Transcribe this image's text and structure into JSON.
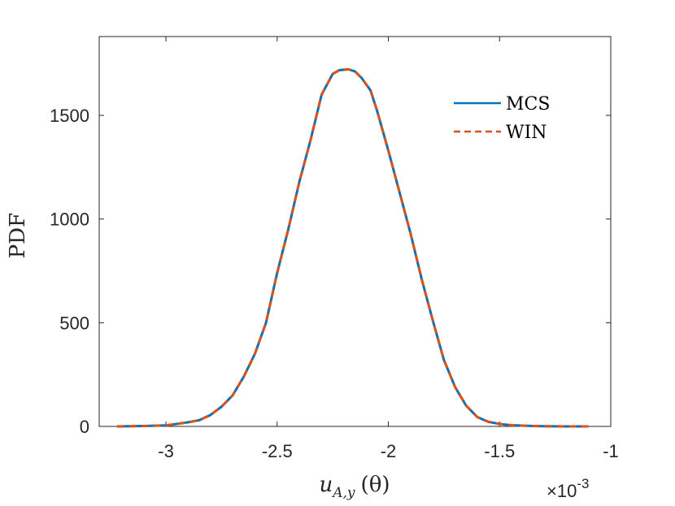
{
  "chart_data": {
    "type": "line",
    "title": "",
    "xlabel_var": "u",
    "xlabel_sub": "A,y",
    "xlabel_arg": "(θ)",
    "ylabel": "PDF",
    "x_multiplier_base": "×10",
    "x_multiplier_exp": "-3",
    "xlim": [
      -3.3,
      -1.0
    ],
    "ylim": [
      0,
      1880
    ],
    "xticks": [
      -3,
      -2.5,
      -2,
      -1.5,
      -1
    ],
    "xtick_labels": [
      "-3",
      "-2.5",
      "-2",
      "-1.5",
      "-1"
    ],
    "yticks": [
      0,
      500,
      1000,
      1500
    ],
    "ytick_labels": [
      "0",
      "500",
      "1000",
      "1500"
    ],
    "grid": false,
    "legend_position": "top-right",
    "series": [
      {
        "name": "MCS",
        "color": "#0072BD",
        "style": "solid",
        "x": [
          -3.22,
          -3.1,
          -3.0,
          -2.95,
          -2.9,
          -2.85,
          -2.8,
          -2.75,
          -2.7,
          -2.65,
          -2.6,
          -2.55,
          -2.5,
          -2.45,
          -2.4,
          -2.35,
          -2.3,
          -2.25,
          -2.22,
          -2.18,
          -2.15,
          -2.12,
          -2.08,
          -2.05,
          -2.0,
          -1.95,
          -1.9,
          -1.85,
          -1.8,
          -1.75,
          -1.7,
          -1.65,
          -1.6,
          -1.55,
          -1.5,
          -1.45,
          -1.4,
          -1.35,
          -1.3,
          -1.2,
          -1.1
        ],
        "y": [
          0,
          2,
          5,
          12,
          20,
          30,
          55,
          95,
          150,
          240,
          350,
          500,
          740,
          950,
          1180,
          1380,
          1600,
          1700,
          1718,
          1722,
          1712,
          1680,
          1620,
          1520,
          1330,
          1130,
          930,
          710,
          510,
          320,
          190,
          100,
          45,
          22,
          12,
          6,
          4,
          2,
          1,
          0,
          0
        ]
      },
      {
        "name": "WIN",
        "color": "#D95319",
        "style": "dashed",
        "x": [
          -3.22,
          -3.1,
          -3.0,
          -2.95,
          -2.9,
          -2.85,
          -2.8,
          -2.75,
          -2.7,
          -2.65,
          -2.6,
          -2.55,
          -2.5,
          -2.45,
          -2.4,
          -2.35,
          -2.3,
          -2.25,
          -2.22,
          -2.18,
          -2.15,
          -2.12,
          -2.08,
          -2.05,
          -2.0,
          -1.95,
          -1.9,
          -1.85,
          -1.8,
          -1.75,
          -1.7,
          -1.65,
          -1.6,
          -1.55,
          -1.5,
          -1.45,
          -1.4,
          -1.35,
          -1.3,
          -1.2,
          -1.1
        ],
        "y": [
          0,
          2,
          5,
          12,
          20,
          30,
          55,
          95,
          150,
          240,
          350,
          500,
          740,
          950,
          1180,
          1380,
          1600,
          1700,
          1718,
          1722,
          1712,
          1680,
          1620,
          1520,
          1330,
          1130,
          930,
          710,
          510,
          320,
          190,
          100,
          45,
          22,
          12,
          6,
          4,
          2,
          1,
          0,
          0
        ]
      }
    ]
  }
}
